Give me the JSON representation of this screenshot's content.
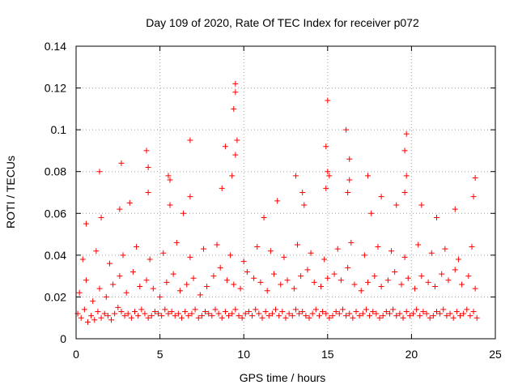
{
  "chart_data": {
    "type": "scatter",
    "title": "Day 109 of 2020, Rate Of TEC Index for receiver p072",
    "xlabel": "GPS time / hours",
    "ylabel": "ROTI / TECUs",
    "xlim": [
      0,
      25
    ],
    "ylim": [
      0,
      0.14
    ],
    "x_ticks": [
      0,
      5,
      10,
      15,
      20,
      25
    ],
    "y_ticks": [
      0,
      0.02,
      0.04,
      0.06,
      0.08,
      0.1,
      0.12,
      0.14
    ],
    "x_tick_labels": [
      "0",
      "5",
      "10",
      "15",
      "20",
      "25"
    ],
    "y_tick_labels": [
      "0",
      "0.02",
      "0.04",
      "0.06",
      "0.08",
      "0.1",
      "0.12",
      "0.14"
    ],
    "grid": true,
    "legend": "none",
    "marker": "plus",
    "color": "#ff0000",
    "series": [
      {
        "x": [
          0.1,
          0.3,
          0.5,
          0.7,
          0.9,
          1.1,
          1.3,
          1.5,
          1.7,
          1.9,
          2.1,
          2.3,
          2.5,
          2.7,
          2.9,
          3.1,
          3.3,
          3.5,
          3.7,
          3.9,
          4.1,
          4.3,
          4.5,
          4.7,
          4.9,
          5.1,
          5.3,
          5.5,
          5.7,
          5.9,
          6.1,
          6.3,
          6.5,
          6.7,
          6.9,
          7.1,
          7.3,
          7.5,
          7.7,
          7.9,
          8.1,
          8.3,
          8.5,
          8.7,
          8.9,
          9.1,
          9.3,
          9.5,
          9.7,
          9.9,
          10.1,
          10.3,
          10.5,
          10.7,
          10.9,
          11.1,
          11.3,
          11.5,
          11.7,
          11.9,
          12.1,
          12.3,
          12.5,
          12.7,
          12.9,
          13.1,
          13.3,
          13.5,
          13.7,
          13.9,
          14.1,
          14.3,
          14.5,
          14.7,
          14.9,
          15.1,
          15.3,
          15.5,
          15.7,
          15.9,
          16.1,
          16.3,
          16.5,
          16.7,
          16.9,
          17.1,
          17.3,
          17.5,
          17.7,
          17.9,
          18.1,
          18.3,
          18.5,
          18.7,
          18.9,
          19.1,
          19.3,
          19.5,
          19.7,
          19.9,
          20.1,
          20.3,
          20.5,
          20.7,
          20.9,
          21.1,
          21.3,
          21.5,
          21.7,
          21.9,
          22.1,
          22.3,
          22.5,
          22.7,
          22.9,
          23.1,
          23.3,
          23.5,
          23.7,
          23.9,
          0.2,
          0.6,
          1.0,
          1.4,
          1.8,
          2.2,
          2.6,
          3.0,
          3.4,
          3.8,
          4.2,
          4.6,
          5.0,
          5.4,
          5.8,
          6.2,
          6.6,
          7.0,
          7.4,
          7.8,
          8.2,
          8.6,
          9.0,
          9.4,
          9.8,
          10.2,
          10.6,
          11.0,
          11.4,
          11.8,
          12.2,
          12.6,
          13.0,
          13.4,
          13.8,
          14.2,
          14.6,
          15.0,
          15.4,
          15.8,
          16.2,
          16.6,
          17.0,
          17.4,
          17.8,
          18.2,
          18.6,
          19.0,
          19.4,
          19.8,
          20.2,
          20.6,
          21.0,
          21.4,
          21.8,
          22.2,
          22.6,
          23.0,
          23.4,
          23.8,
          0.4,
          1.2,
          2.0,
          2.8,
          3.6,
          4.4,
          5.2,
          6.0,
          6.8,
          7.6,
          8.4,
          9.2,
          10.0,
          10.8,
          11.6,
          12.4,
          13.2,
          14.0,
          14.8,
          15.6,
          16.4,
          17.2,
          18.0,
          18.8,
          19.6,
          20.4,
          21.2,
          22.0,
          22.8,
          23.6,
          0.6,
          1.5,
          2.6,
          3.2,
          4.3,
          5.6,
          6.4,
          6.8,
          8.7,
          9.3,
          9.5,
          9.6,
          11.2,
          12.0,
          13.5,
          13.6,
          14.9,
          15.0,
          15.1,
          16.2,
          16.3,
          17.6,
          18.2,
          19.1,
          19.7,
          19.6,
          20.6,
          21.5,
          22.6,
          23.7,
          1.4,
          2.7,
          4.2,
          4.3,
          5.5,
          5.6,
          6.8,
          8.9,
          9.4,
          9.5,
          9.5,
          13.1,
          14.9,
          15.0,
          16.3,
          16.1,
          17.4,
          19.6,
          19.7,
          23.8
        ],
        "y": [
          0.012,
          0.01,
          0.014,
          0.008,
          0.011,
          0.009,
          0.013,
          0.01,
          0.012,
          0.011,
          0.009,
          0.012,
          0.015,
          0.013,
          0.011,
          0.012,
          0.01,
          0.013,
          0.011,
          0.014,
          0.012,
          0.01,
          0.011,
          0.013,
          0.012,
          0.011,
          0.014,
          0.012,
          0.013,
          0.011,
          0.012,
          0.01,
          0.013,
          0.011,
          0.012,
          0.014,
          0.01,
          0.011,
          0.013,
          0.012,
          0.011,
          0.014,
          0.012,
          0.01,
          0.013,
          0.011,
          0.012,
          0.014,
          0.011,
          0.01,
          0.012,
          0.013,
          0.011,
          0.014,
          0.012,
          0.01,
          0.013,
          0.011,
          0.012,
          0.014,
          0.011,
          0.013,
          0.01,
          0.012,
          0.011,
          0.014,
          0.012,
          0.013,
          0.011,
          0.01,
          0.012,
          0.014,
          0.011,
          0.013,
          0.012,
          0.01,
          0.011,
          0.013,
          0.012,
          0.014,
          0.011,
          0.012,
          0.01,
          0.013,
          0.011,
          0.012,
          0.014,
          0.011,
          0.013,
          0.012,
          0.01,
          0.011,
          0.013,
          0.012,
          0.014,
          0.011,
          0.012,
          0.01,
          0.013,
          0.011,
          0.012,
          0.014,
          0.011,
          0.013,
          0.012,
          0.01,
          0.011,
          0.013,
          0.012,
          0.014,
          0.011,
          0.012,
          0.01,
          0.013,
          0.011,
          0.012,
          0.014,
          0.011,
          0.013,
          0.01,
          0.022,
          0.028,
          0.018,
          0.024,
          0.02,
          0.026,
          0.03,
          0.022,
          0.032,
          0.025,
          0.028,
          0.024,
          0.02,
          0.027,
          0.031,
          0.023,
          0.026,
          0.029,
          0.021,
          0.025,
          0.03,
          0.034,
          0.028,
          0.026,
          0.024,
          0.032,
          0.029,
          0.027,
          0.023,
          0.031,
          0.026,
          0.028,
          0.024,
          0.03,
          0.033,
          0.027,
          0.025,
          0.029,
          0.031,
          0.028,
          0.034,
          0.026,
          0.023,
          0.027,
          0.03,
          0.025,
          0.028,
          0.032,
          0.026,
          0.029,
          0.024,
          0.03,
          0.027,
          0.025,
          0.031,
          0.028,
          0.033,
          0.026,
          0.03,
          0.024,
          0.038,
          0.042,
          0.036,
          0.04,
          0.044,
          0.038,
          0.041,
          0.046,
          0.039,
          0.043,
          0.045,
          0.04,
          0.037,
          0.044,
          0.042,
          0.039,
          0.045,
          0.041,
          0.038,
          0.043,
          0.046,
          0.04,
          0.044,
          0.042,
          0.039,
          0.045,
          0.041,
          0.043,
          0.038,
          0.044,
          0.055,
          0.058,
          0.062,
          0.065,
          0.07,
          0.064,
          0.06,
          0.068,
          0.072,
          0.078,
          0.088,
          0.095,
          0.058,
          0.066,
          0.07,
          0.064,
          0.072,
          0.08,
          0.078,
          0.07,
          0.076,
          0.06,
          0.068,
          0.064,
          0.078,
          0.07,
          0.064,
          0.058,
          0.062,
          0.068,
          0.08,
          0.084,
          0.09,
          0.082,
          0.078,
          0.076,
          0.095,
          0.092,
          0.11,
          0.118,
          0.122,
          0.078,
          0.092,
          0.114,
          0.086,
          0.1,
          0.078,
          0.09,
          0.098,
          0.077
        ]
      }
    ]
  }
}
